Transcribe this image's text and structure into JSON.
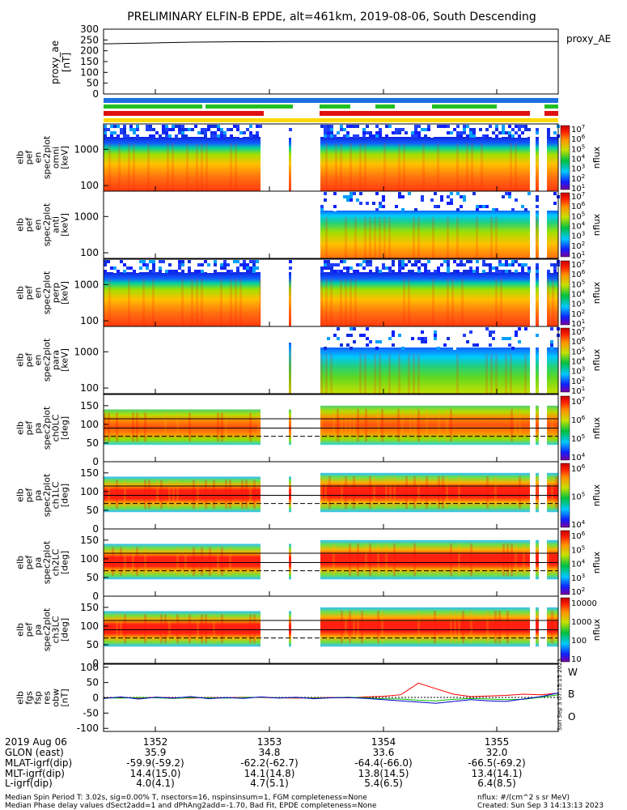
{
  "title": "PRELIMINARY ELFIN-B EPDE, alt=461km, 2019-08-06, South Descending",
  "colors": {
    "proxy_line": "#000000",
    "bar_blue": "#1e6fe0",
    "bar_green": "#22c022",
    "bar_red": "#e01010",
    "bar_yellow": "#ffd800",
    "fgm_W": "#ff0000",
    "fgm_B": "#00bb00",
    "fgm_O": "#0000cc"
  },
  "panels": {
    "proxy": {
      "ylabel": [
        "proxy_ae",
        "[nT]"
      ],
      "legend": "proxy_AE",
      "ticks": [
        "300",
        "250",
        "200",
        "150",
        "100",
        "50",
        "0"
      ]
    },
    "energy": [
      {
        "ylabel": [
          "elb",
          "pef",
          "en",
          "spec2plot",
          "omni",
          "[keV]"
        ],
        "ticks": [
          "1000",
          "100"
        ],
        "cbar_label": "nflux",
        "cbar_ticks": [
          "10^7",
          "10^6",
          "10^5",
          "10^4",
          "10^3",
          "10^2",
          "10^1"
        ]
      },
      {
        "ylabel": [
          "elb",
          "pef",
          "en",
          "spec2plot",
          "anti",
          "[keV]"
        ],
        "ticks": [
          "1000",
          "100"
        ],
        "cbar_label": "nflux",
        "cbar_ticks": [
          "10^7",
          "10^6",
          "10^5",
          "10^4",
          "10^3",
          "10^2",
          "10^1"
        ]
      },
      {
        "ylabel": [
          "elb",
          "pef",
          "en",
          "spec2plot",
          "perp",
          "[keV]"
        ],
        "ticks": [
          "1000",
          "100"
        ],
        "cbar_label": "nflux",
        "cbar_ticks": [
          "10^7",
          "10^6",
          "10^5",
          "10^4",
          "10^3",
          "10^2",
          "10^1"
        ]
      },
      {
        "ylabel": [
          "elb",
          "pef",
          "en",
          "spec2plot",
          "para",
          "[keV]"
        ],
        "ticks": [
          "1000",
          "100"
        ],
        "cbar_label": "nflux",
        "cbar_ticks": [
          "10^7",
          "10^6",
          "10^5",
          "10^4",
          "10^3",
          "10^2",
          "10^1"
        ]
      }
    ],
    "pitch": [
      {
        "ylabel": [
          "elb",
          "pef",
          "pa",
          "spec2plot",
          "ch0LC",
          "[deg]"
        ],
        "ticks": [
          "150",
          "100",
          "50",
          "0"
        ],
        "cbar_label": "nflux",
        "cbar_ticks": [
          "10^7",
          "10^6",
          "10^5",
          "10^4"
        ]
      },
      {
        "ylabel": [
          "elb",
          "pef",
          "pa",
          "spec2plot",
          "ch1LC",
          "[deg]"
        ],
        "ticks": [
          "150",
          "100",
          "50",
          "0"
        ],
        "cbar_label": "nflux",
        "cbar_ticks": [
          "10^6",
          "10^5",
          "10^4"
        ]
      },
      {
        "ylabel": [
          "elb",
          "pef",
          "pa",
          "spec2plot",
          "ch2LC",
          "[deg]"
        ],
        "ticks": [
          "150",
          "100",
          "50",
          "0"
        ],
        "cbar_label": "nflux",
        "cbar_ticks": [
          "10^6",
          "10^5",
          "10^4",
          "10^3",
          "10^2"
        ]
      },
      {
        "ylabel": [
          "elb",
          "pef",
          "pa",
          "spec2plot",
          "ch3LC",
          "[deg]"
        ],
        "ticks": [
          "150",
          "100",
          "50",
          "0"
        ],
        "cbar_label": "nflux",
        "cbar_ticks": [
          "10000",
          "1000",
          "100",
          "10"
        ]
      }
    ],
    "fgs": {
      "ylabel": [
        "elb",
        "fgs",
        "fsp",
        "res",
        "obw",
        "[nT]"
      ],
      "ticks": [
        "100",
        "50",
        "0",
        "-50",
        "-100"
      ],
      "legend": [
        "W",
        "B",
        "O"
      ],
      "side_note": "Sun Sep  3 07:15:15 2023"
    }
  },
  "footer": {
    "labels": [
      "2019 Aug 06",
      "GLON (east)",
      "MLAT-igrf(dip)",
      "MLT-igrf(dip)",
      "L-igrf(dip)"
    ],
    "columns": [
      {
        "time": "1352",
        "glon": "35.9",
        "mlat": "-59.9(-59.2)",
        "mlt": "14.4(15.0)",
        "l": "4.0(4.1)"
      },
      {
        "time": "1353",
        "glon": "34.8",
        "mlat": "-62.2(-62.7)",
        "mlt": "14.1(14.8)",
        "l": "4.7(5.1)"
      },
      {
        "time": "1354",
        "glon": "33.6",
        "mlat": "-64.4(-66.0)",
        "mlt": "13.8(14.5)",
        "l": "5.4(6.5)"
      },
      {
        "time": "1355",
        "glon": "32.0",
        "mlat": "-66.5(-69.2)",
        "mlt": "13.4(14.1)",
        "l": "6.4(8.5)"
      }
    ],
    "note1": "Median Spin Period T: 3.02s, sig=0.00% T, nsectors=16, nspinsinsum=1, FGM completeness=None",
    "note2": "Median Phase delay values dSect2add=1 and dPhAng2add=-1.70, Bad Fit, EPDE completeness=None",
    "units": "nflux: #/(cm^2 s sr MeV)",
    "created": "Created: Sun Sep  3 14:13:13 2023"
  },
  "chart_data": {
    "type": "heatmap",
    "time_ticks": [
      "1352",
      "1353",
      "1354",
      "1355"
    ],
    "proxy_ae": {
      "ylim": [
        0,
        300
      ],
      "values": [
        232,
        234,
        236,
        238,
        240,
        241,
        242,
        242,
        243,
        243,
        243,
        243,
        243,
        243,
        243,
        243,
        243,
        243,
        243,
        243,
        243
      ]
    },
    "energy_ylim_keV": [
      70,
      5000
    ],
    "pitch_ylim_deg": [
      0,
      180
    ],
    "fgs_ylim_nT": [
      -110,
      110
    ],
    "fgs_W": [
      0,
      1,
      -1,
      2,
      0,
      -1,
      1,
      0,
      2,
      1,
      0,
      -1,
      0,
      1,
      0,
      3,
      5,
      10,
      48,
      30,
      12,
      4,
      6,
      8,
      12,
      10,
      15
    ],
    "fgs_B": [
      0,
      -1,
      1,
      0,
      -2,
      1,
      0,
      -1,
      1,
      2,
      0,
      1,
      -1,
      0,
      2,
      0,
      -3,
      -4,
      -8,
      -10,
      -5,
      -2,
      -4,
      -6,
      -5,
      2,
      10
    ],
    "fgs_O": [
      -2,
      3,
      -4,
      2,
      -1,
      4,
      -3,
      1,
      -2,
      3,
      -1,
      2,
      -3,
      0,
      1,
      -2,
      -6,
      -10,
      -14,
      -18,
      -12,
      -6,
      -10,
      -12,
      -4,
      4,
      16
    ]
  }
}
